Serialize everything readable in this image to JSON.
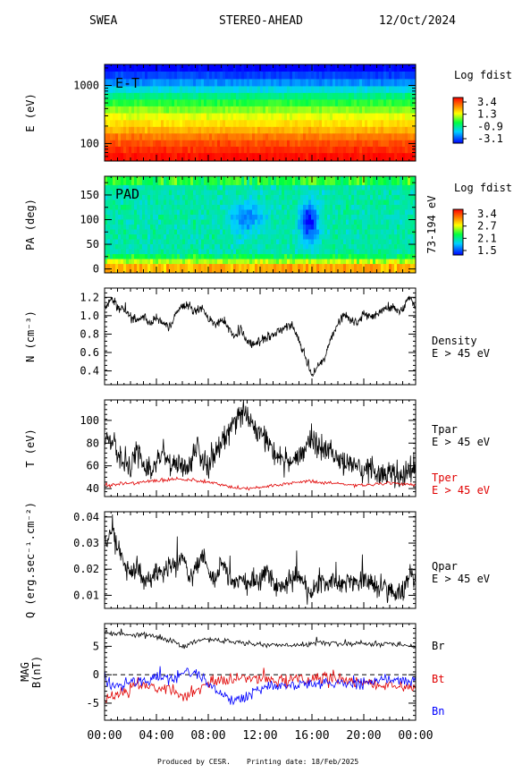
{
  "header": {
    "instrument": "SWEA",
    "spacecraft": "STEREO-AHEAD",
    "date": "12/Oct/2024"
  },
  "footer": {
    "produced": "Produced by CESR.",
    "printing": "Printing date: 18/Feb/2025"
  },
  "time_axis": {
    "ticks": [
      "00:00",
      "04:00",
      "08:00",
      "12:00",
      "16:00",
      "20:00",
      "00:00"
    ],
    "range_hours": [
      0,
      24
    ]
  },
  "colors": {
    "black": "#000000",
    "red": "#e00000",
    "blue": "#0000ff"
  },
  "chart_data": [
    {
      "type": "heatmap",
      "ylabel": "E (eV)",
      "yscale": "log",
      "ylim": [
        50,
        2300
      ],
      "yticks": [
        {
          "value": 1000,
          "label": "1000"
        },
        {
          "value": 100,
          "label": "100"
        }
      ],
      "annotation": "E-T",
      "colorbar": {
        "title": "Log fdist",
        "labels": [
          "3.4",
          "1.3",
          "-0.9",
          "-3.1"
        ],
        "range": [
          -3.1,
          3.4
        ]
      },
      "energy_bands": [
        {
          "energy": 2000,
          "value": -3.1
        },
        {
          "energy": 1500,
          "value": -2.6
        },
        {
          "energy": 1100,
          "value": -2.0
        },
        {
          "energy": 850,
          "value": -1.3
        },
        {
          "energy": 650,
          "value": -0.6
        },
        {
          "energy": 500,
          "value": 0.0
        },
        {
          "energy": 380,
          "value": 0.5
        },
        {
          "energy": 290,
          "value": 1.0
        },
        {
          "energy": 220,
          "value": 1.4
        },
        {
          "energy": 170,
          "value": 1.8
        },
        {
          "energy": 130,
          "value": 2.3
        },
        {
          "energy": 100,
          "value": 2.7
        },
        {
          "energy": 78,
          "value": 3.0
        },
        {
          "energy": 60,
          "value": 3.3
        }
      ]
    },
    {
      "type": "heatmap",
      "ylabel": "PA (deg)",
      "ylim": [
        -8,
        188
      ],
      "yticks": [
        {
          "value": 150,
          "label": "150"
        },
        {
          "value": 100,
          "label": "100"
        },
        {
          "value": 50,
          "label": "50"
        },
        {
          "value": 0,
          "label": "0"
        }
      ],
      "annotation": "PAD",
      "energy_range_label": "73-194 eV",
      "colorbar": {
        "title": "Log fdist",
        "labels": [
          "3.4",
          "2.7",
          "2.1",
          "1.5"
        ],
        "range": [
          1.5,
          3.4
        ]
      },
      "description_values": {
        "background": 2.15,
        "low_pa_enhanced": 3.1,
        "min_at_16h": 1.5,
        "min_at_11h": 1.8
      }
    },
    {
      "type": "line",
      "ylabel": "N (cm⁻³)",
      "ylim": [
        0.25,
        1.3
      ],
      "yticks": [
        {
          "value": 1.2,
          "label": "1.2"
        },
        {
          "value": 1.0,
          "label": "1.0"
        },
        {
          "value": 0.8,
          "label": "0.8"
        },
        {
          "value": 0.6,
          "label": "0.6"
        },
        {
          "value": 0.4,
          "label": "0.4"
        }
      ],
      "series": [
        {
          "name": "Density E > 45 eV",
          "color": "#000000",
          "x": [
            0,
            0.5,
            1,
            1.5,
            2,
            2.5,
            3,
            3.5,
            4,
            4.5,
            5,
            5.5,
            6,
            6.5,
            7,
            7.5,
            8,
            8.5,
            9,
            9.5,
            10,
            10.5,
            11,
            11.5,
            12,
            12.5,
            13,
            13.5,
            14,
            14.5,
            15,
            15.5,
            16,
            16.5,
            17,
            17.5,
            18,
            18.5,
            19,
            19.5,
            20,
            20.5,
            21,
            21.5,
            22,
            22.5,
            23,
            23.5,
            24
          ],
          "y": [
            1.1,
            1.18,
            1.1,
            1.05,
            1.0,
            0.95,
            1.0,
            0.9,
            0.98,
            0.92,
            0.85,
            1.02,
            1.1,
            1.12,
            1.05,
            1.08,
            0.98,
            0.9,
            0.95,
            0.88,
            0.76,
            0.85,
            0.72,
            0.68,
            0.72,
            0.78,
            0.8,
            0.84,
            0.88,
            0.9,
            0.72,
            0.55,
            0.35,
            0.45,
            0.55,
            0.78,
            0.9,
            1.02,
            0.95,
            0.92,
            1.02,
            1.0,
            1.02,
            1.05,
            1.1,
            1.08,
            1.06,
            1.2,
            1.1
          ]
        }
      ],
      "labels": [
        "Density",
        "E > 45 eV"
      ]
    },
    {
      "type": "line",
      "ylabel": "T (eV)",
      "ylim": [
        33,
        118
      ],
      "yticks": [
        {
          "value": 100,
          "label": "100"
        },
        {
          "value": 80,
          "label": "80"
        },
        {
          "value": 60,
          "label": "60"
        },
        {
          "value": 40,
          "label": "40"
        }
      ],
      "series": [
        {
          "name": "Tpar E > 45 eV",
          "color": "#000000",
          "x": [
            0,
            0.5,
            1,
            1.5,
            2,
            2.5,
            3,
            3.5,
            4,
            4.5,
            5,
            5.5,
            6,
            6.5,
            7,
            7.5,
            8,
            8.5,
            9,
            9.5,
            10,
            10.5,
            11,
            11.5,
            12,
            12.5,
            13,
            13.5,
            14,
            14.5,
            15,
            15.5,
            16,
            16.5,
            17,
            17.5,
            18,
            18.5,
            19,
            19.5,
            20,
            20.5,
            21,
            21.5,
            22,
            22.5,
            23,
            23.5,
            24
          ],
          "y": [
            85,
            78,
            72,
            62,
            58,
            75,
            60,
            55,
            62,
            78,
            60,
            65,
            58,
            60,
            80,
            65,
            58,
            72,
            80,
            90,
            100,
            108,
            103,
            95,
            88,
            85,
            72,
            70,
            65,
            62,
            70,
            75,
            85,
            78,
            72,
            75,
            65,
            60,
            62,
            55,
            58,
            60,
            55,
            52,
            55,
            50,
            48,
            60,
            55
          ]
        },
        {
          "name": "Tper E > 45 eV",
          "color": "#e00000",
          "x": [
            0,
            1,
            2,
            3,
            4,
            5,
            6,
            7,
            8,
            9,
            10,
            11,
            12,
            13,
            14,
            15,
            16,
            17,
            18,
            19,
            20,
            21,
            22,
            23,
            24
          ],
          "y": [
            42,
            44,
            45,
            46,
            47,
            48,
            48,
            47,
            46,
            43,
            41,
            40,
            41,
            43,
            44,
            46,
            46,
            45,
            44,
            43,
            43,
            44,
            45,
            44,
            43
          ]
        }
      ],
      "labels": [
        "Tpar",
        "E > 45 eV",
        "Tper",
        "E > 45 eV"
      ]
    },
    {
      "type": "line",
      "ylabel": "Q (erg.sec⁻¹.cm⁻²)",
      "ylim": [
        0.005,
        0.042
      ],
      "yticks": [
        {
          "value": 0.04,
          "label": "0.04"
        },
        {
          "value": 0.03,
          "label": "0.03"
        },
        {
          "value": 0.02,
          "label": "0.02"
        },
        {
          "value": 0.01,
          "label": "0.01"
        }
      ],
      "series": [
        {
          "name": "Qpar E > 45 eV",
          "color": "#000000",
          "x": [
            0,
            0.5,
            1,
            1.5,
            2,
            2.5,
            3,
            3.5,
            4,
            4.5,
            5,
            5.5,
            6,
            6.5,
            7,
            7.5,
            8,
            8.5,
            9,
            9.5,
            10,
            10.5,
            11,
            11.5,
            12,
            12.5,
            13,
            13.5,
            14,
            14.5,
            15,
            15.5,
            16,
            16.5,
            17,
            17.5,
            18,
            18.5,
            19,
            19.5,
            20,
            20.5,
            21,
            21.5,
            22,
            22.5,
            23,
            23.5,
            24
          ],
          "y": [
            0.03,
            0.035,
            0.028,
            0.024,
            0.018,
            0.021,
            0.016,
            0.017,
            0.02,
            0.018,
            0.022,
            0.02,
            0.025,
            0.017,
            0.019,
            0.025,
            0.02,
            0.016,
            0.022,
            0.018,
            0.015,
            0.016,
            0.014,
            0.016,
            0.015,
            0.02,
            0.015,
            0.013,
            0.014,
            0.016,
            0.019,
            0.013,
            0.011,
            0.015,
            0.014,
            0.016,
            0.015,
            0.014,
            0.016,
            0.015,
            0.017,
            0.015,
            0.014,
            0.013,
            0.012,
            0.011,
            0.011,
            0.019,
            0.016
          ]
        }
      ],
      "labels": [
        "Qpar",
        "E > 45 eV"
      ]
    },
    {
      "type": "line",
      "ylabel": "MAG B(nT)",
      "ylim": [
        -8,
        9
      ],
      "yticks": [
        {
          "value": 5,
          "label": "5"
        },
        {
          "value": 0,
          "label": "0"
        },
        {
          "value": -5,
          "label": "-5"
        }
      ],
      "reference_line": 0,
      "series": [
        {
          "name": "Br",
          "color": "#000000",
          "x": [
            0,
            1,
            2,
            3,
            4,
            5,
            6,
            7,
            8,
            9,
            10,
            11,
            12,
            13,
            14,
            15,
            16,
            17,
            18,
            19,
            20,
            21,
            22,
            23,
            24
          ],
          "y": [
            7.5,
            7.2,
            7.0,
            7.0,
            6.5,
            6.2,
            5.0,
            6.0,
            6.2,
            6.0,
            5.8,
            5.5,
            5.3,
            5.2,
            5.2,
            5.3,
            5.5,
            5.6,
            5.5,
            5.4,
            5.5,
            5.4,
            5.5,
            5.2,
            5.0
          ]
        },
        {
          "name": "Bt",
          "color": "#e00000",
          "x": [
            0,
            1,
            2,
            3,
            4,
            5,
            6,
            7,
            8,
            9,
            10,
            11,
            12,
            13,
            14,
            15,
            16,
            17,
            18,
            19,
            20,
            21,
            22,
            23,
            24
          ],
          "y": [
            -4.0,
            -3.2,
            -2.5,
            -2.0,
            -2.2,
            -2.5,
            -4.0,
            -3.0,
            -1.5,
            -1.0,
            -0.8,
            -0.5,
            -0.8,
            -1.0,
            -1.2,
            -0.8,
            -1.0,
            -0.5,
            -0.8,
            -1.2,
            -1.5,
            -1.8,
            -2.0,
            -2.2,
            -2.0
          ]
        },
        {
          "name": "Bn",
          "color": "#0000ff",
          "x": [
            0,
            1,
            2,
            3,
            4,
            5,
            6,
            7,
            8,
            9,
            10,
            11,
            12,
            13,
            14,
            15,
            16,
            17,
            18,
            19,
            20,
            21,
            22,
            23,
            24
          ],
          "y": [
            -1.0,
            -2.0,
            -1.5,
            -1.0,
            -0.5,
            -1.0,
            0.5,
            0.0,
            -1.5,
            -3.5,
            -4.5,
            -3.5,
            -2.5,
            -2.0,
            -1.8,
            -1.5,
            -1.8,
            -1.5,
            -1.5,
            -1.8,
            -1.5,
            -1.2,
            -0.8,
            -1.0,
            -1.2
          ]
        }
      ],
      "labels": [
        "Br",
        "Bt",
        "Bn"
      ]
    }
  ]
}
